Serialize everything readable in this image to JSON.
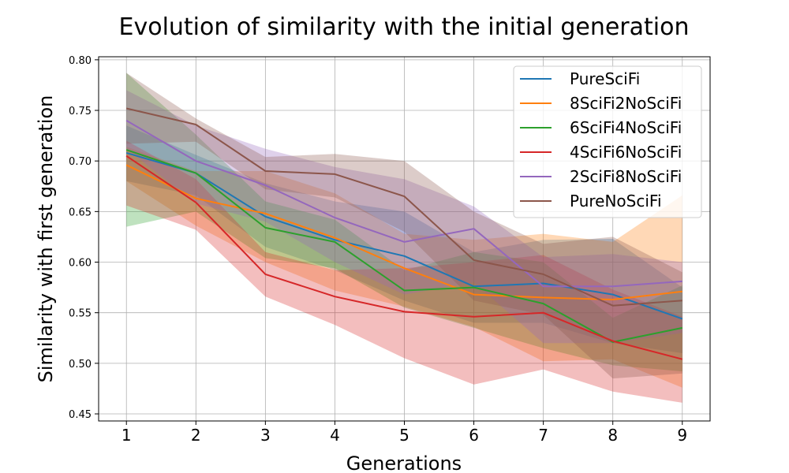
{
  "chart_data": {
    "type": "line",
    "title": "Evolution of similarity with the initial generation",
    "xlabel": "Generations",
    "ylabel": "Similarity with first generation",
    "x": [
      1,
      2,
      3,
      4,
      5,
      6,
      7,
      8,
      9
    ],
    "xlim": [
      0.6,
      9.4
    ],
    "ylim": [
      0.443,
      0.803
    ],
    "yticks": [
      0.45,
      0.5,
      0.55,
      0.6,
      0.65,
      0.7,
      0.75,
      0.8
    ],
    "ytick_labels": [
      "0.45",
      "0.50",
      "0.55",
      "0.60",
      "0.65",
      "0.70",
      "0.75",
      "0.80"
    ],
    "grid": true,
    "legend_position": "top-right",
    "series": [
      {
        "name": "PureSciFi",
        "color": "#1f77b4",
        "values": [
          0.708,
          0.688,
          0.645,
          0.622,
          0.606,
          0.576,
          0.579,
          0.568,
          0.544
        ],
        "lower": [
          0.68,
          0.666,
          0.615,
          0.592,
          0.562,
          0.54,
          0.54,
          0.52,
          0.51
        ],
        "upper": [
          0.735,
          0.706,
          0.678,
          0.66,
          0.65,
          0.61,
          0.622,
          0.623,
          0.575
        ]
      },
      {
        "name": "8SciFi2NoSciFi",
        "color": "#ff7f0e",
        "values": [
          0.696,
          0.663,
          0.648,
          0.624,
          0.594,
          0.568,
          0.565,
          0.563,
          0.571
        ],
        "lower": [
          0.68,
          0.636,
          0.6,
          0.572,
          0.556,
          0.536,
          0.502,
          0.504,
          0.476
        ],
        "upper": [
          0.714,
          0.69,
          0.69,
          0.668,
          0.628,
          0.622,
          0.628,
          0.62,
          0.666
        ]
      },
      {
        "name": "6SciFi4NoSciFi",
        "color": "#2ca02c",
        "values": [
          0.711,
          0.688,
          0.634,
          0.62,
          0.572,
          0.575,
          0.559,
          0.521,
          0.535
        ],
        "lower": [
          0.635,
          0.65,
          0.604,
          0.594,
          0.555,
          0.535,
          0.515,
          0.498,
          0.492
        ],
        "upper": [
          0.787,
          0.726,
          0.66,
          0.642,
          0.592,
          0.61,
          0.6,
          0.545,
          0.577
        ]
      },
      {
        "name": "4SciFi6NoSciFi",
        "color": "#d62728",
        "values": [
          0.705,
          0.659,
          0.588,
          0.566,
          0.551,
          0.546,
          0.55,
          0.522,
          0.504
        ],
        "lower": [
          0.656,
          0.632,
          0.566,
          0.538,
          0.505,
          0.479,
          0.494,
          0.472,
          0.461
        ],
        "upper": [
          0.72,
          0.682,
          0.61,
          0.592,
          0.594,
          0.6,
          0.607,
          0.573,
          0.546
        ]
      },
      {
        "name": "2SciFi8NoSciFi",
        "color": "#9467bd",
        "values": [
          0.74,
          0.7,
          0.676,
          0.644,
          0.62,
          0.633,
          0.576,
          0.576,
          0.581
        ],
        "lower": [
          0.712,
          0.658,
          0.64,
          0.6,
          0.568,
          0.58,
          0.52,
          0.52,
          0.53
        ],
        "upper": [
          0.77,
          0.735,
          0.712,
          0.694,
          0.682,
          0.655,
          0.605,
          0.608,
          0.6
        ]
      },
      {
        "name": "PureNoSciFi",
        "color": "#8c564b",
        "values": [
          0.752,
          0.736,
          0.69,
          0.687,
          0.665,
          0.602,
          0.588,
          0.557,
          0.562
        ],
        "lower": [
          0.717,
          0.719,
          0.672,
          0.664,
          0.63,
          0.562,
          0.548,
          0.485,
          0.49
        ],
        "upper": [
          0.787,
          0.742,
          0.704,
          0.707,
          0.7,
          0.65,
          0.618,
          0.625,
          0.59
        ]
      }
    ]
  }
}
